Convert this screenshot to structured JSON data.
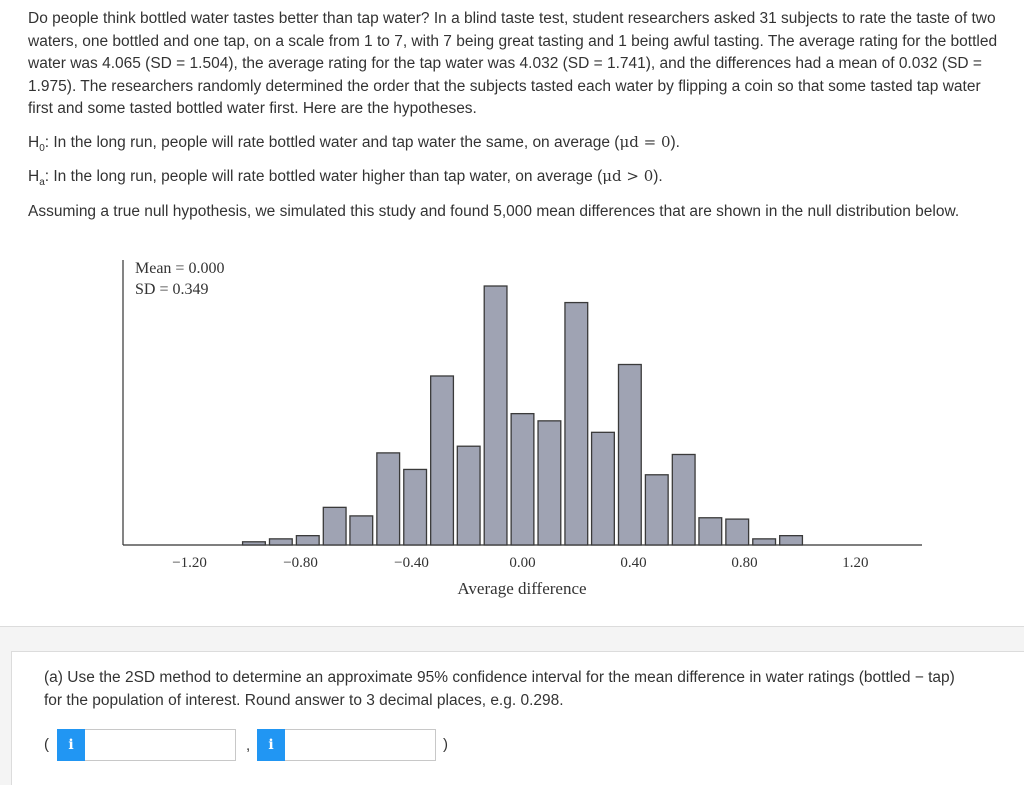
{
  "question": {
    "intro": "Do people think bottled water tastes better than tap water? In a blind taste test, student researchers asked 31 subjects to rate the taste of two waters, one bottled and one tap, on a scale from 1 to 7, with 7 being great tasting and 1 being awful tasting. The average rating for the bottled water was 4.065 (SD = 1.504), the average rating for the tap water was 4.032 (SD = 1.741), and the differences had a mean of 0.032 (SD = 1.975). The researchers randomly determined the order that the subjects tasted each water by flipping a coin so that some tasted tap water first and some tasted bottled water first. Here are the hypotheses.",
    "h0_label": "H",
    "h0_sub": "0",
    "h0_text": ": In the long run, people will rate bottled water and tap water the same, on average (",
    "h0_math": "μd = 0",
    "ha_label": "H",
    "ha_sub": "a",
    "ha_text": ": In the long run, people will rate bottled water higher than tap water, on average (",
    "ha_math": "μd > 0",
    "math_close": ").",
    "assume": "Assuming a true null hypothesis, we simulated this study and found 5,000 mean differences that are shown in the null distribution below."
  },
  "chart_data": {
    "type": "bar",
    "title": "",
    "stats": [
      "Mean = 0.000",
      "SD = 0.349"
    ],
    "xlabel": "Average difference",
    "ylabel": "",
    "xlim": [
      -1.44,
      1.44
    ],
    "ylim": [
      0,
      1
    ],
    "x_ticks": [
      "−1.20",
      "−0.80",
      "−0.40",
      "0.00",
      "0.40",
      "0.80",
      "1.20"
    ],
    "x_tick_values": [
      -1.2,
      -0.8,
      -0.4,
      0.0,
      0.4,
      0.8,
      1.2
    ],
    "bin_centers": [
      -0.968,
      -0.871,
      -0.774,
      -0.677,
      -0.581,
      -0.484,
      -0.387,
      -0.29,
      -0.194,
      -0.097,
      0.0,
      0.097,
      0.194,
      0.29,
      0.387,
      0.484,
      0.581,
      0.677,
      0.774,
      0.871,
      0.968
    ],
    "bin_width": 0.082,
    "values": [
      0.012,
      0.023,
      0.035,
      0.141,
      0.109,
      0.345,
      0.283,
      0.633,
      0.37,
      0.97,
      0.492,
      0.465,
      0.908,
      0.422,
      0.676,
      0.263,
      0.339,
      0.102,
      0.097,
      0.023,
      0.035
    ],
    "value_units": "relative frequency (normalized to tallest bar ≈ 1)"
  },
  "part_a": {
    "text": "(a) Use the 2SD method to determine an approximate 95% confidence interval for the mean difference in water ratings (bottled − tap) for the population of interest. Round answer to 3 decimal places, e.g. 0.298.",
    "open_paren": "(",
    "comma": ",",
    "close_paren": ")",
    "info_icon": "i",
    "lower_value": "",
    "upper_value": "",
    "accent_color": "#2196f3"
  }
}
